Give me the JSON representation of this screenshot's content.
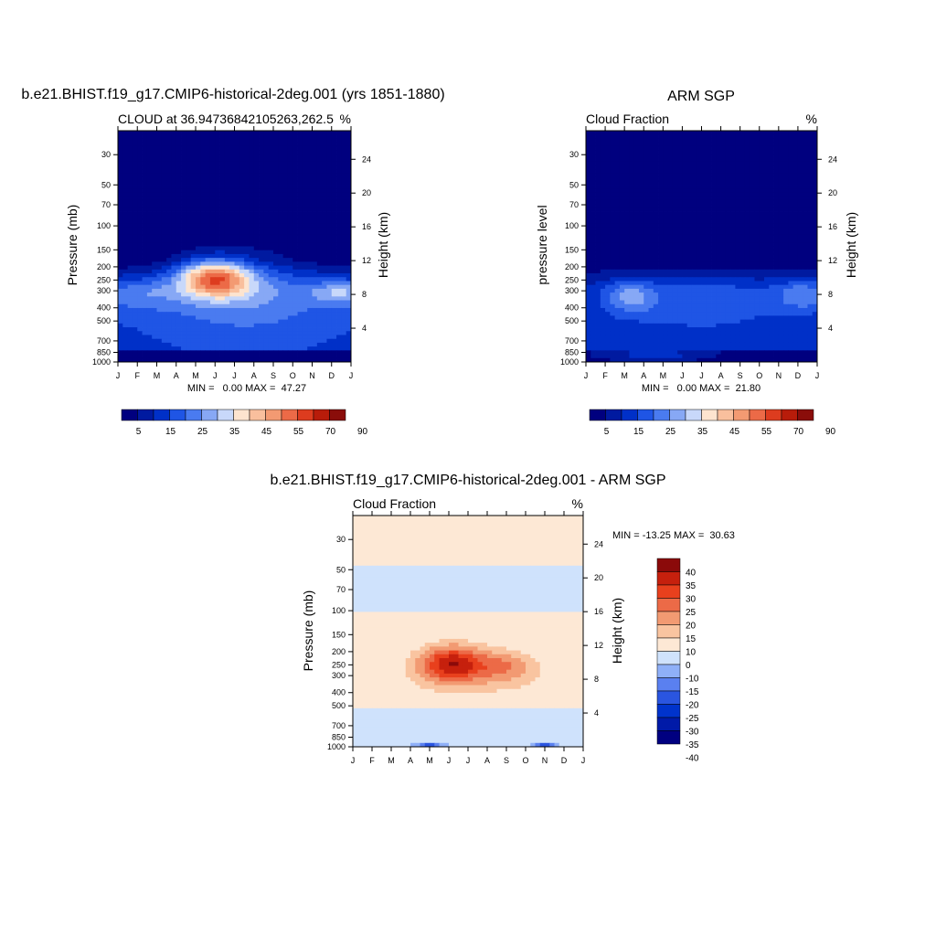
{
  "chart_data": [
    {
      "type": "heatmap",
      "title": "b.e21.BHIST.f19_g17.CMIP6-historical-2deg.001 (yrs 1851-1880)",
      "subtitle_left": "CLOUD at 36.94736842105263,262.5",
      "subtitle_right": "%",
      "ylabel": "Pressure (mb)",
      "ylabel_right": "Height (km)",
      "x_ticks": [
        "J",
        "F",
        "M",
        "A",
        "M",
        "J",
        "J",
        "A",
        "S",
        "O",
        "N",
        "D",
        "J"
      ],
      "y_ticks": [
        30,
        50,
        70,
        100,
        150,
        200,
        250,
        300,
        400,
        500,
        700,
        850,
        1000
      ],
      "y_right_ticks": [
        24,
        20,
        16,
        12,
        8,
        4
      ],
      "ylim": [
        1000,
        20
      ],
      "stats": "MIN =   0.00 MAX =  47.27",
      "min": 0.0,
      "max": 47.27,
      "colorbar_labels": [
        "5",
        "15",
        "25",
        "35",
        "45",
        "55",
        "70",
        "90"
      ],
      "features": [
        {
          "month": 5.0,
          "pressure": 240,
          "value": 46,
          "sm": 1.3,
          "sp": 0.22
        },
        {
          "month": 6.5,
          "pressure": 300,
          "value": 20,
          "sm": 3.0,
          "sp": 0.5
        },
        {
          "month": 11.5,
          "pressure": 310,
          "value": 22,
          "sm": 1.0,
          "sp": 0.15
        },
        {
          "month": 1.0,
          "pressure": 320,
          "value": 16,
          "sm": 1.5,
          "sp": 0.2
        }
      ]
    },
    {
      "type": "heatmap",
      "title": "ARM SGP",
      "subtitle_left": "Cloud Fraction",
      "subtitle_right": "%",
      "ylabel": "pressure level",
      "ylabel_right": "Height (km)",
      "x_ticks": [
        "J",
        "F",
        "M",
        "A",
        "M",
        "J",
        "J",
        "A",
        "S",
        "O",
        "N",
        "D",
        "J"
      ],
      "y_ticks": [
        30,
        50,
        70,
        100,
        150,
        200,
        250,
        300,
        400,
        500,
        700,
        850,
        1000
      ],
      "y_right_ticks": [
        24,
        20,
        16,
        12,
        8,
        4
      ],
      "ylim": [
        1000,
        20
      ],
      "stats": "MIN =   0.00 MAX =  21.80",
      "min": 0.0,
      "max": 21.8,
      "colorbar_labels": [
        "5",
        "15",
        "25",
        "35",
        "45",
        "55",
        "70",
        "90"
      ],
      "features": [
        {
          "month": 2.3,
          "pressure": 330,
          "value": 21,
          "sm": 0.9,
          "sp": 0.2
        },
        {
          "month": 6.0,
          "pressure": 360,
          "value": 16,
          "sm": 3.0,
          "sp": 0.35
        },
        {
          "month": 11.3,
          "pressure": 320,
          "value": 20,
          "sm": 1.0,
          "sp": 0.2
        },
        {
          "month": 3.5,
          "pressure": 880,
          "value": 18,
          "sm": 1.5,
          "sp": 0.06
        }
      ]
    },
    {
      "type": "heatmap",
      "title": "b.e21.BHIST.f19_g17.CMIP6-historical-2deg.001 - ARM SGP",
      "subtitle_left": "Cloud Fraction",
      "subtitle_right": "%",
      "ylabel": "Pressure (mb)",
      "ylabel_right": "Height (km)",
      "x_ticks": [
        "J",
        "F",
        "M",
        "A",
        "M",
        "J",
        "J",
        "A",
        "S",
        "O",
        "N",
        "D",
        "J"
      ],
      "y_ticks": [
        30,
        50,
        70,
        100,
        150,
        200,
        250,
        300,
        400,
        500,
        700,
        850,
        1000
      ],
      "y_right_ticks": [
        24,
        20,
        16,
        12,
        8,
        4
      ],
      "ylim": [
        1000,
        20
      ],
      "stats": "MIN = -13.25 MAX =  30.63",
      "min": -13.25,
      "max": 30.63,
      "colorbar_labels": [
        "40",
        "35",
        "30",
        "25",
        "20",
        "15",
        "10",
        "0",
        "-10",
        "-15",
        "-20",
        "-25",
        "-30",
        "-35",
        "-40"
      ],
      "features": [
        {
          "month": 5.2,
          "pressure": 245,
          "value": 30,
          "sm": 1.2,
          "sp": 0.22
        },
        {
          "month": 8.0,
          "pressure": 255,
          "value": 14,
          "sm": 1.0,
          "sp": 0.18
        },
        {
          "month": 6.5,
          "pressure": 300,
          "value": 11,
          "sm": 3.2,
          "sp": 0.35
        },
        {
          "month": 4.0,
          "pressure": 960,
          "value": -13,
          "sm": 0.6,
          "sp": 0.03
        },
        {
          "month": 10.0,
          "pressure": 970,
          "value": -12,
          "sm": 0.5,
          "sp": 0.03
        }
      ]
    }
  ],
  "colors": {
    "model_palette": [
      "#00007f",
      "#001aa0",
      "#0030c8",
      "#1f55e5",
      "#4a7bf0",
      "#87a8f5",
      "#c8d8fa",
      "#fde4cf",
      "#f9bf9d",
      "#f39a72",
      "#ec6a47",
      "#dd3c1f",
      "#b81c0a",
      "#8a0d0a"
    ],
    "diff_palette": [
      "#000080",
      "#001aa8",
      "#0033cc",
      "#2a55e0",
      "#5a80f0",
      "#8fb0f8",
      "#cfe2fc",
      "#fde8d5",
      "#f9c4a0",
      "#f29a72",
      "#ec6a47",
      "#e8401d",
      "#c6200d",
      "#8b0a0a"
    ]
  }
}
